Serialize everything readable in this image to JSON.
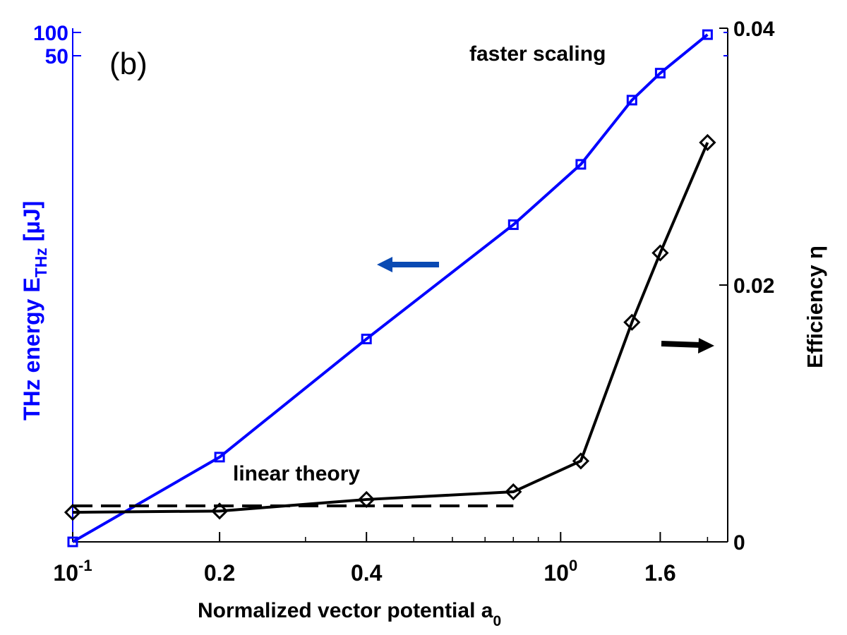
{
  "chart_data": {
    "type": "line",
    "panel_label": "(b)",
    "xlabel": "Normalized vector potential a",
    "xlabel_sub": "0",
    "x_scale": "log",
    "xlim": [
      0.1,
      2.2
    ],
    "x_ticks": [
      {
        "value": 0.1,
        "base": "10",
        "exp": "-1"
      },
      {
        "value": 0.2,
        "text": "0.2"
      },
      {
        "value": 0.4,
        "text": "0.4"
      },
      {
        "value": 1.0,
        "base": "10",
        "exp": "0"
      },
      {
        "value": 1.6,
        "text": "1.6"
      }
    ],
    "y_left": {
      "label": "THz energy E",
      "label_sub": "THz",
      "unit": " [µJ]",
      "ticks": [
        "100",
        "50"
      ],
      "color": "#0000ff"
    },
    "y_right": {
      "label": "Efficiency η",
      "ylim": [
        0,
        0.04
      ],
      "ticks": [
        "0",
        "0.02",
        "0.04"
      ],
      "color": "#000000"
    },
    "series": [
      {
        "id": "energy",
        "axis": "left",
        "color": "#0000ff",
        "marker": "square",
        "x": [
          0.1,
          0.2,
          0.4,
          0.8,
          1.1,
          1.4,
          1.6,
          2.0
        ],
        "plot_y": [
          0.0,
          0.0066,
          0.0158,
          0.0247,
          0.0294,
          0.0344,
          0.0365,
          0.0395
        ]
      },
      {
        "id": "efficiency",
        "axis": "right",
        "color": "#000000",
        "marker": "diamond",
        "x": [
          0.1,
          0.2,
          0.4,
          0.8,
          1.1,
          1.4,
          1.6,
          2.0
        ],
        "y": [
          0.0023,
          0.0024,
          0.0033,
          0.0039,
          0.0063,
          0.0171,
          0.0225,
          0.0311
        ]
      },
      {
        "id": "linear-theory",
        "axis": "right",
        "color": "#000000",
        "style": "dashed",
        "x": [
          0.1,
          0.8
        ],
        "y": [
          0.0028,
          0.0028
        ]
      }
    ],
    "annotations": [
      {
        "text": "faster scaling"
      },
      {
        "text": "linear theory"
      }
    ],
    "arrow_colors": {
      "left": "#0a4ab3",
      "right": "#000000"
    }
  }
}
